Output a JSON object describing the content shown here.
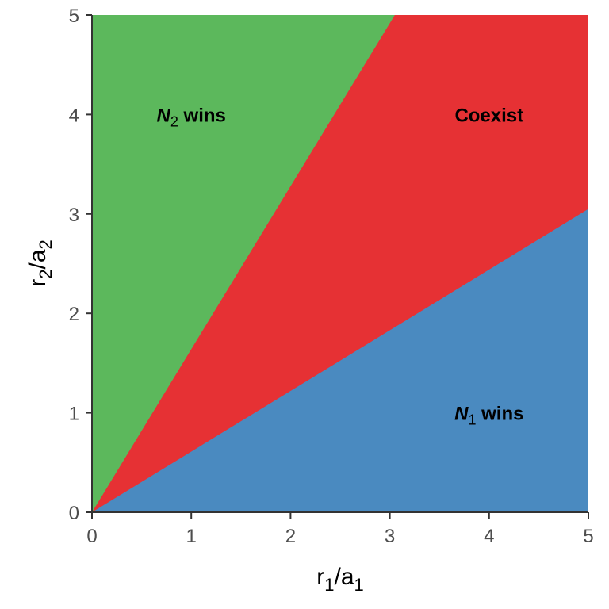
{
  "chart_data": {
    "type": "heatmap",
    "title": "",
    "x": {
      "label_main": "r",
      "label_sub1": "1",
      "label_slash": "/",
      "label_main2": "a",
      "label_sub2": "1",
      "range": [
        0,
        5
      ],
      "ticks": [
        0,
        1,
        2,
        3,
        4,
        5
      ]
    },
    "y": {
      "label_main": "r",
      "label_sub1": "2",
      "label_slash": "/",
      "label_main2": "a",
      "label_sub2": "2",
      "range": [
        0,
        5
      ],
      "ticks": [
        0,
        1,
        2,
        3,
        4,
        5
      ]
    },
    "grid": false,
    "regions": [
      {
        "id": "n2-wins",
        "label_var": "N",
        "label_sub": "2",
        "label_rest": " wins",
        "color": "#5cb85c",
        "label_at": {
          "x": 1.0,
          "y": 4.0
        }
      },
      {
        "id": "coexist",
        "label_var": "",
        "label_sub": "",
        "label_rest": "Coexist",
        "color": "#e63134",
        "label_at": {
          "x": 4.0,
          "y": 4.0
        }
      },
      {
        "id": "n1-wins",
        "label_var": "N",
        "label_sub": "1",
        "label_rest": " wins",
        "color": "#4a8ac0",
        "label_at": {
          "x": 4.0,
          "y": 1.0
        }
      }
    ],
    "boundaries": {
      "upper": {
        "description": "N2 wins above",
        "x": [
          0,
          3.05
        ],
        "y": [
          0,
          5
        ]
      },
      "lower": {
        "description": "N1 wins below",
        "x": [
          0,
          5
        ],
        "y": [
          0,
          3.05
        ]
      }
    }
  }
}
